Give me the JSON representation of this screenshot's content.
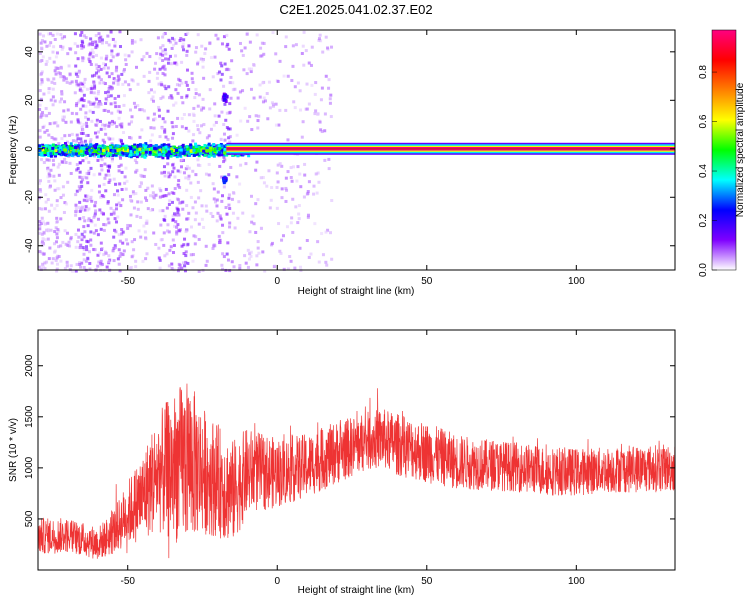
{
  "title": "C2E1.2025.041.02.37.E02",
  "chart_data": [
    {
      "type": "heatmap",
      "xlabel": "Height of straight line (km)",
      "ylabel": "Frequency (Hz)",
      "xlim": [
        -80,
        133
      ],
      "ylim": [
        -50,
        49
      ],
      "xticks": [
        -50,
        0,
        50,
        100
      ],
      "yticks": [
        -40,
        -20,
        0,
        20,
        40
      ],
      "colorbar": {
        "label": "Normalized spectral amplitude",
        "range": [
          0,
          0.97
        ],
        "ticks": [
          0.0,
          0.2,
          0.4,
          0.6,
          0.8
        ],
        "colors": [
          "#ffffff",
          "#7f00ff",
          "#0000ff",
          "#00ffff",
          "#00ff00",
          "#ffff00",
          "#ff7f00",
          "#ff0000",
          "#ff0080"
        ]
      },
      "features": {
        "carrier_line": {
          "frequency": 0,
          "x_from": -17,
          "x_to": 133,
          "amplitude": 0.97
        },
        "noisy_region": {
          "x_from": -80,
          "x_to": -10,
          "freq_spread": 7,
          "amplitude": 0.45
        },
        "scattered_speckle": {
          "x_from": -80,
          "x_to": 18,
          "freq_range": [
            -50,
            49
          ],
          "amplitude": 0.1
        },
        "blobs": [
          {
            "x": 8,
            "y": 0.5,
            "amplitude": 0.55
          },
          {
            "x": 15,
            "y": 0.5,
            "amplitude": 0.4
          },
          {
            "x": -18,
            "y": -12,
            "amplitude": 0.3
          },
          {
            "x": -18,
            "y": 22,
            "amplitude": 0.2
          }
        ]
      }
    },
    {
      "type": "line",
      "xlabel": "Height of straight line (km)",
      "ylabel": "SNR (10 * v/v)",
      "xlim": [
        -80,
        133
      ],
      "ylim": [
        0,
        2350
      ],
      "xticks": [
        -50,
        0,
        50,
        100
      ],
      "yticks": [
        500,
        1000,
        1500,
        2000
      ],
      "color": "#ee3333",
      "envelope": {
        "x": [
          -80,
          -70,
          -60,
          -55,
          -50,
          -45,
          -40,
          -35,
          -30,
          -25,
          -20,
          -15,
          -10,
          -5,
          0,
          10,
          20,
          30,
          35,
          40,
          50,
          60,
          70,
          80,
          90,
          100,
          110,
          120,
          133
        ],
        "mean": [
          330,
          340,
          260,
          360,
          560,
          720,
          950,
          1000,
          1080,
          980,
          880,
          760,
          960,
          960,
          950,
          1020,
          1150,
          1260,
          1290,
          1230,
          1150,
          1060,
          1030,
          1010,
          970,
          960,
          980,
          990,
          1000
        ],
        "amp": [
          200,
          190,
          180,
          240,
          350,
          480,
          640,
          820,
          900,
          700,
          620,
          570,
          480,
          420,
          380,
          350,
          340,
          320,
          330,
          340,
          330,
          300,
          280,
          270,
          270,
          260,
          250,
          260,
          260
        ]
      }
    }
  ]
}
